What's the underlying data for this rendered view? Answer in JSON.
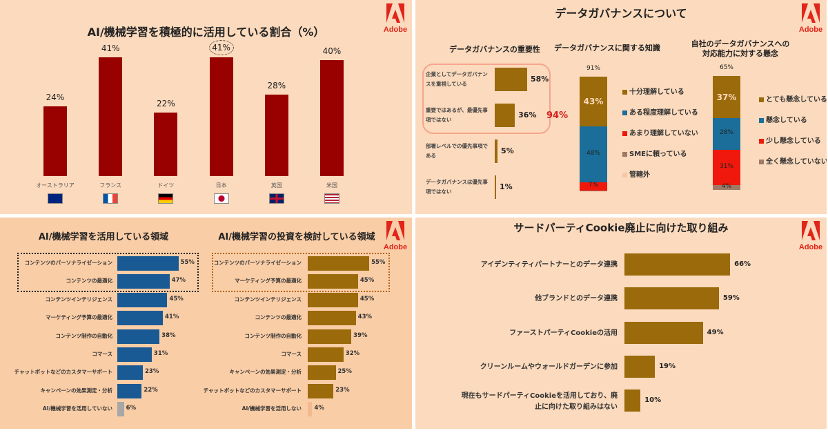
{
  "logo_text": "Adobe",
  "colors": {
    "bg_top": "#FCDABD",
    "bg_bottom_left": "#F9CDA6",
    "dark_red": "#990000",
    "blue": "#1A5A94",
    "brown": "#9B6A0B",
    "red": "#F0180C",
    "grey": "#A7A7A7",
    "light": "#F3B98F",
    "accent_red": "#E1251B",
    "taupe": "#A07A68"
  },
  "chart_data": [
    {
      "id": "ai_usage_by_country",
      "type": "bar",
      "title": "AI/機械学習を積極的に活用している割合（%）",
      "categories": [
        "オーストラリア",
        "フランス",
        "ドイツ",
        "日本",
        "英国",
        "米国"
      ],
      "flags": [
        "australia-flag",
        "france-flag",
        "germany-flag",
        "japan-flag",
        "uk-flag",
        "us-flag"
      ],
      "values": [
        24,
        41,
        22,
        41,
        28,
        40
      ],
      "labels": [
        "24%",
        "41%",
        "22%",
        "41%",
        "28%",
        "40%"
      ],
      "highlight": "日本",
      "color": "#990000"
    },
    {
      "id": "governance",
      "section_title": "データガバナンスについて",
      "charts": [
        {
          "id": "importance",
          "type": "bar",
          "orientation": "horizontal",
          "title": "データガバナンスの重要性",
          "categories": [
            "企業としてデータガバナンスを重視している",
            "重要ではあるが、最優先事項ではない",
            "部署レベルでの優先事項である",
            "データガバナンスは優先事項ではない"
          ],
          "values": [
            58,
            36,
            5,
            1
          ],
          "labels": [
            "58%",
            "36%",
            "5%",
            "1%"
          ],
          "highlight_total": "94%",
          "color": "#9B6A0B"
        },
        {
          "id": "knowledge",
          "type": "stacked-bar",
          "title": "データガバナンスに関する知識",
          "total_label": "91%",
          "series": [
            {
              "name": "十分理解している",
              "value": 43,
              "label": "43%",
              "color": "#9B6A0B"
            },
            {
              "name": "ある程度理解している",
              "value": 48,
              "label": "48%",
              "color": "#1A6E99"
            },
            {
              "name": "あまり理解していない",
              "value": 7,
              "label": "7%",
              "color": "#F0180C"
            },
            {
              "name": "SMEに頼っている",
              "value": 1,
              "label": "",
              "color": "#A07A68"
            },
            {
              "name": "管轄外",
              "value": 0,
              "label": "",
              "color": "#F7C7A8"
            }
          ]
        },
        {
          "id": "concern",
          "type": "stacked-bar",
          "title": "自社のデータガバナンスへの\n対応能力に対する懸念",
          "total_label": "65%",
          "series": [
            {
              "name": "とても懸念している",
              "value": 37,
              "label": "37%",
              "color": "#9B6A0B"
            },
            {
              "name": "懸念している",
              "value": 28,
              "label": "28%",
              "color": "#1A6E99"
            },
            {
              "name": "少し懸念している",
              "value": 31,
              "label": "31%",
              "color": "#F0180C"
            },
            {
              "name": "全く懸念していない",
              "value": 4,
              "label": "4%",
              "color": "#A07A68"
            }
          ]
        }
      ]
    },
    {
      "id": "ai_areas_used",
      "type": "bar",
      "orientation": "horizontal",
      "title": "AI/機械学習を活用している領域",
      "categories": [
        "コンテンツのパーソナライゼーション",
        "コンテンツの最適化",
        "コンテンツインテリジェンス",
        "マーケティング予算の最適化",
        "コンテンツ制作の自動化",
        "コマース",
        "チャットボットなどのカスタマーサポート",
        "キャンペーンの効果測定・分析",
        "AI/機械学習を活用していない"
      ],
      "values": [
        55,
        47,
        45,
        41,
        38,
        31,
        23,
        22,
        6
      ],
      "labels": [
        "55%",
        "47%",
        "45%",
        "41%",
        "38%",
        "31%",
        "23%",
        "22%",
        "6%"
      ],
      "highlight_top": 2,
      "color": "#1A5A94",
      "last_color": "#A7A7A7"
    },
    {
      "id": "ai_areas_considered",
      "type": "bar",
      "orientation": "horizontal",
      "title": "AI/機械学習の投資を検討している領域",
      "categories": [
        "コンテンツのパーソナライゼーション",
        "マーケティング予算の最適化",
        "コンテンツインテリジェンス",
        "コンテンツの最適化",
        "コンテンツ制作の自動化",
        "コマース",
        "キャンペーンの効果測定・分析",
        "チャットボットなどのカスタマーサポート",
        "AI/機械学習を活用しない"
      ],
      "values": [
        55,
        45,
        45,
        43,
        39,
        32,
        25,
        23,
        4
      ],
      "labels": [
        "55%",
        "45%",
        "45%",
        "43%",
        "39%",
        "32%",
        "25%",
        "23%",
        "4%"
      ],
      "highlight_top": 2,
      "color": "#9B6A0B",
      "last_color": "#F3B98F"
    },
    {
      "id": "third_party_cookie",
      "type": "bar",
      "orientation": "horizontal",
      "title": "サードパーティCookie廃止に向けた取り組み",
      "categories": [
        "アイデンティティパートナーとのデータ連携",
        "他ブランドとのデータ連携",
        "ファーストパーティCookieの活用",
        "クリーンルームやウォールドガーデンに参加",
        "現在もサードパーティCookieを活用しており、廃\n止に向けた取り組みはない"
      ],
      "values": [
        66,
        59,
        49,
        19,
        10
      ],
      "labels": [
        "66%",
        "59%",
        "49%",
        "19%",
        "10%"
      ],
      "color": "#9B6A0B"
    }
  ]
}
